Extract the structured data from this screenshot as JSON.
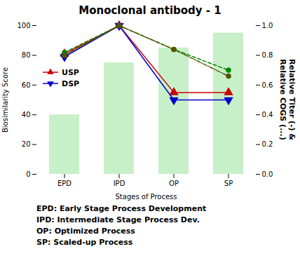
{
  "chart_data": {
    "type": "bar",
    "title": "Monoclonal antibody - 1",
    "xlabel": "Stages of Process",
    "ylabel": "Biosimilarity Score",
    "y2label": "Relative Titer (-) &\nRelative COGS (...)",
    "categories": [
      "EPD",
      "IPD",
      "OP",
      "SP"
    ],
    "ylim": [
      0,
      100
    ],
    "yticks": [
      0,
      20,
      40,
      60,
      80,
      100
    ],
    "y2lim": [
      0.0,
      1.0
    ],
    "y2ticks": [
      {
        "value": 0,
        "label": "0.0"
      },
      0.2,
      0.4,
      0.6,
      0.8,
      {
        "value": 1,
        "label": "1.0"
      }
    ],
    "grid": false,
    "legend": "upper left",
    "series": [
      {
        "type": "bar",
        "color": "#c8f0c8",
        "values": [
          40,
          75,
          85,
          95
        ]
      },
      {
        "name": "USP",
        "type": "line",
        "color": "#cc0000",
        "marker": "triangle-up",
        "line_style": "solid",
        "values": [
          81,
          100,
          55,
          55
        ]
      },
      {
        "name": "DSP",
        "type": "line",
        "color": "#0000cc",
        "marker": "triangle-down",
        "line_style": "solid",
        "values": [
          79,
          100,
          50,
          50
        ]
      },
      {
        "type": "line",
        "axis": "y2",
        "color": "#008800",
        "marker": "circle",
        "line_style": "dashed",
        "values": [
          0.82,
          1.0,
          0.84,
          0.7
        ]
      },
      {
        "type": "line",
        "axis": "y2",
        "color": "#555500",
        "marker": "circle",
        "line_style": "dashdot",
        "values": [
          0.8,
          1.0,
          0.84,
          0.66
        ]
      }
    ],
    "annotations": [
      "EPD: Early Stage Process Development",
      "IPD: Intermediate Stage Process Dev.",
      "OP: Optimized Process",
      "SP: Scaled-up Process"
    ]
  }
}
